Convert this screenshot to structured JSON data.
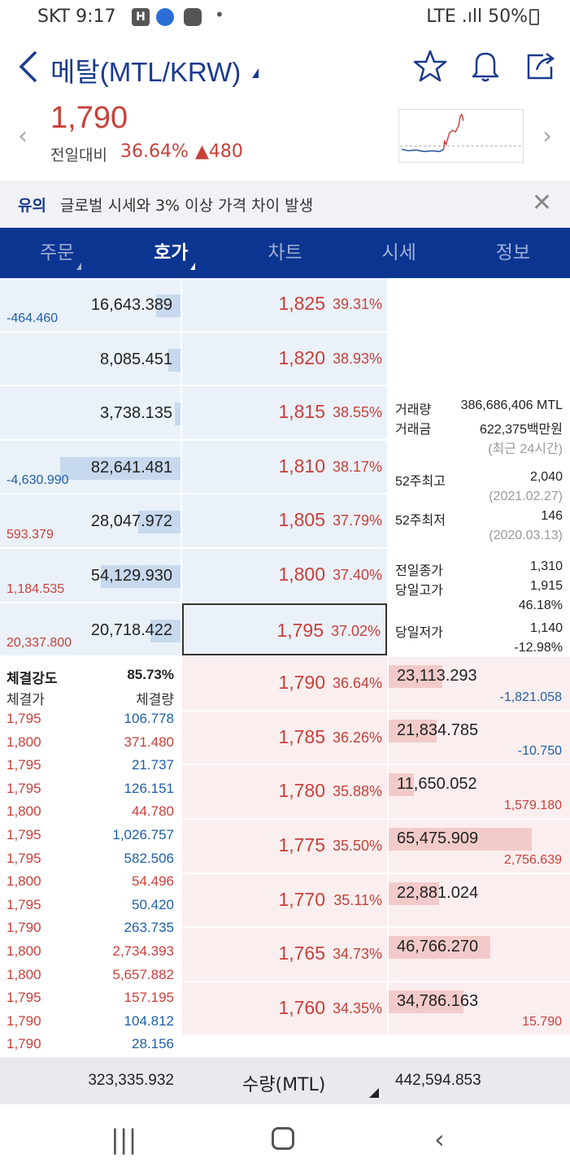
{
  "status": {
    "carrier_time": "SKT 9:17",
    "right_text": "LTE .ıll 50%"
  },
  "header": {
    "title": "메탈(MTL/KRW)"
  },
  "summary": {
    "price": "1,790",
    "change_label": "전일대비",
    "change_pct": "36.64%",
    "change_abs": "▲480"
  },
  "notice": {
    "tag": "유의",
    "message": "글로벌 시세와 3% 이상 가격 차이 발생"
  },
  "tabs": [
    {
      "label": "주문"
    },
    {
      "label": "호가"
    },
    {
      "label": "차트"
    },
    {
      "label": "시세"
    },
    {
      "label": "정보"
    }
  ],
  "asks": [
    {
      "volume": "16,643.389",
      "price": "1,825",
      "pct": "39.31%",
      "diff": "-464.460",
      "diff_color": "blue",
      "fill": 0.2
    },
    {
      "volume": "8,085.451",
      "price": "1,820",
      "pct": "38.93%",
      "diff": "",
      "diff_color": "blue",
      "fill": 0.1
    },
    {
      "volume": "3,738.135",
      "price": "1,815",
      "pct": "38.55%",
      "diff": "",
      "diff_color": "blue",
      "fill": 0.05
    },
    {
      "volume": "82,641.481",
      "price": "1,810",
      "pct": "38.17%",
      "diff": "-4,630.990",
      "diff_color": "blue",
      "fill": 1.0
    },
    {
      "volume": "28,047.972",
      "price": "1,805",
      "pct": "37.79%",
      "diff": "593.379",
      "diff_color": "red",
      "fill": 0.35
    },
    {
      "volume": "54,129.930",
      "price": "1,800",
      "pct": "37.40%",
      "diff": "1,184.535",
      "diff_color": "red",
      "fill": 0.66
    },
    {
      "volume": "20,718.422",
      "price": "1,795",
      "pct": "37.02%",
      "diff": "20,337.800",
      "diff_color": "red",
      "fill": 0.25
    }
  ],
  "bids": [
    {
      "volume": "23,113.293",
      "price": "1,790",
      "pct": "36.64%",
      "diff": "-1,821.058",
      "diff_color": "blue",
      "fill": 0.3
    },
    {
      "volume": "21,834.785",
      "price": "1,785",
      "pct": "36.26%",
      "diff": "-10.750",
      "diff_color": "blue",
      "fill": 0.27
    },
    {
      "volume": "11,650.052",
      "price": "1,780",
      "pct": "35.88%",
      "diff": "1,579.180",
      "diff_color": "red",
      "fill": 0.14
    },
    {
      "volume": "65,475.909",
      "price": "1,775",
      "pct": "35.50%",
      "diff": "2,756.639",
      "diff_color": "red",
      "fill": 0.8
    },
    {
      "volume": "22,881.024",
      "price": "1,770",
      "pct": "35.11%",
      "diff": "",
      "diff_color": "red",
      "fill": 0.28
    },
    {
      "volume": "46,766.270",
      "price": "1,765",
      "pct": "34.73%",
      "diff": "",
      "diff_color": "red",
      "fill": 0.57
    },
    {
      "volume": "34,786.163",
      "price": "1,760",
      "pct": "34.35%",
      "diff": "15.790",
      "diff_color": "red",
      "fill": 0.42
    }
  ],
  "info": {
    "volume_label": "거래량",
    "volume": "386,686,406 MTL",
    "amount_label": "거래금",
    "amount": "622,375백만원",
    "period": "(최근 24시간)",
    "high52_label": "52주최고",
    "high52": "2,040",
    "high52_date": "(2021.02.27)",
    "low52_label": "52주최저",
    "low52": "146",
    "low52_date": "(2020.03.13)",
    "prev_close_label": "전일종가",
    "prev_close": "1,310",
    "day_high_label": "당일고가",
    "day_high": "1,915",
    "day_high_pct": "46.18%",
    "day_low_label": "당일저가",
    "day_low": "1,140",
    "day_low_pct": "-12.98%"
  },
  "ticks": {
    "strength_label": "체결강도",
    "strength": "85.73%",
    "price_header": "체결가",
    "qty_header": "체결량",
    "rows": [
      {
        "price": "1,795",
        "qty": "106.778",
        "qty_color": "blue"
      },
      {
        "price": "1,800",
        "qty": "371.480",
        "qty_color": "red"
      },
      {
        "price": "1,795",
        "qty": "21.737",
        "qty_color": "blue"
      },
      {
        "price": "1,795",
        "qty": "126.151",
        "qty_color": "blue"
      },
      {
        "price": "1,800",
        "qty": "44.780",
        "qty_color": "red"
      },
      {
        "price": "1,795",
        "qty": "1,026.757",
        "qty_color": "blue"
      },
      {
        "price": "1,795",
        "qty": "582.506",
        "qty_color": "blue"
      },
      {
        "price": "1,800",
        "qty": "54.496",
        "qty_color": "red"
      },
      {
        "price": "1,795",
        "qty": "50.420",
        "qty_color": "blue"
      },
      {
        "price": "1,790",
        "qty": "263.735",
        "qty_color": "blue"
      },
      {
        "price": "1,800",
        "qty": "2,734.393",
        "qty_color": "red"
      },
      {
        "price": "1,800",
        "qty": "5,657.882",
        "qty_color": "red"
      },
      {
        "price": "1,795",
        "qty": "157.195",
        "qty_color": "red"
      },
      {
        "price": "1,790",
        "qty": "104.812",
        "qty_color": "blue"
      },
      {
        "price": "1,790",
        "qty": "28.156",
        "qty_color": "blue"
      }
    ]
  },
  "footer": {
    "ask_total": "323,335.932",
    "unit_label": "수량(MTL)",
    "bid_total": "442,594.853"
  },
  "colors": {
    "brand": "#0b3590",
    "up": "#c8403a",
    "down": "#1f5fa8"
  }
}
